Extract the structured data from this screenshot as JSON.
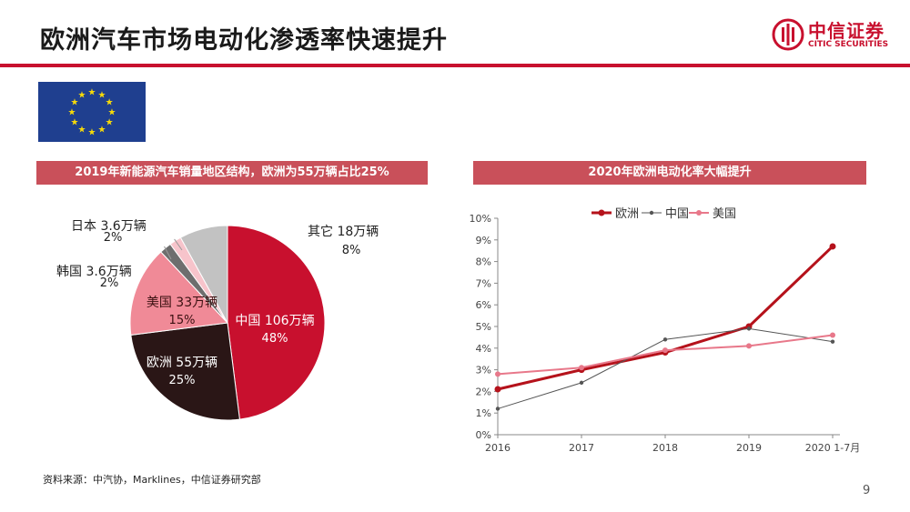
{
  "header": {
    "title": "欧洲汽车市场电动化渗透率快速提升"
  },
  "logo": {
    "name_cn": "中信证券",
    "name_en": "CITIC SECURITIES"
  },
  "flag": {
    "bg": "#1f3f8f",
    "star": "#f5d90a"
  },
  "colors": {
    "accent": "#c8102e",
    "banner": "#c9505a"
  },
  "chart_data": [
    {
      "type": "pie",
      "title": "2019年新能源汽车销量地区结构，欧洲为55万辆占比25%",
      "slices": [
        {
          "label": "中国",
          "amount": "106万辆",
          "pct_label": "48%",
          "value": 48,
          "color": "#c8102e"
        },
        {
          "label": "欧洲",
          "amount": "55万辆",
          "pct_label": "25%",
          "value": 25,
          "color": "#2a1616"
        },
        {
          "label": "美国",
          "amount": "33万辆",
          "pct_label": "15%",
          "value": 15,
          "color": "#f08a97"
        },
        {
          "label": "韩国",
          "amount": "3.6万辆",
          "pct_label": "2%",
          "value": 2,
          "color": "#6e6e6e"
        },
        {
          "label": "日本",
          "amount": "3.6万辆",
          "pct_label": "2%",
          "value": 2,
          "color": "#f7c4cb"
        },
        {
          "label": "其它",
          "amount": "18万辆",
          "pct_label": "8%",
          "value": 8,
          "color": "#c2c2c2"
        }
      ]
    },
    {
      "type": "line",
      "title": "2020年欧洲电动化率大幅提升",
      "categories": [
        "2016",
        "2017",
        "2018",
        "2019",
        "2020 1-7月"
      ],
      "series": [
        {
          "name": "欧洲",
          "values": [
            2.1,
            3.0,
            3.8,
            5.0,
            8.7
          ],
          "color": "#b5121b"
        },
        {
          "name": "中国",
          "values": [
            1.2,
            2.4,
            4.4,
            4.9,
            4.3
          ],
          "color": "#555555"
        },
        {
          "name": "美国",
          "values": [
            2.8,
            3.1,
            3.9,
            4.1,
            4.6
          ],
          "color": "#e8788a"
        }
      ],
      "y_ticks": [
        "0%",
        "1%",
        "2%",
        "3%",
        "4%",
        "5%",
        "6%",
        "7%",
        "8%",
        "9%",
        "10%"
      ],
      "ylim": [
        0,
        10
      ]
    }
  ],
  "footer": {
    "source": "资料来源：中汽协，Marklines，中信证券研究部",
    "page": "9"
  }
}
